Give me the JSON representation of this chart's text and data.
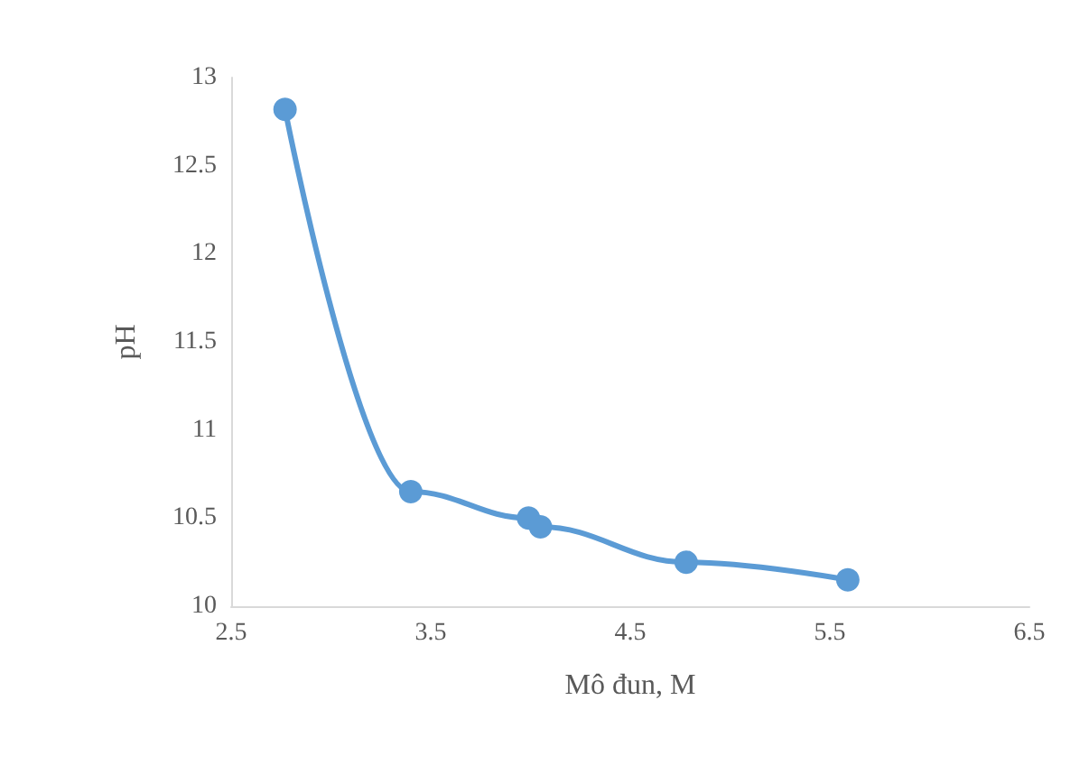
{
  "chart_data": {
    "type": "line",
    "xlabel": "Mô đun, M",
    "ylabel": "pH",
    "x": [
      2.77,
      3.4,
      3.99,
      4.05,
      4.78,
      5.59
    ],
    "series": [
      {
        "color": "#5b9bd5",
        "values": [
          12.82,
          10.65,
          10.5,
          10.45,
          10.25,
          10.15
        ]
      }
    ],
    "xlim": [
      2.5,
      6.5
    ],
    "xticks": [
      2.5,
      3.5,
      4.5,
      5.5,
      6.5
    ],
    "ylim": [
      10,
      13
    ],
    "yticks": [
      10,
      10.5,
      11,
      11.5,
      12,
      12.5,
      13
    ],
    "grid": false,
    "marker": "circle",
    "line_style": "solid"
  }
}
